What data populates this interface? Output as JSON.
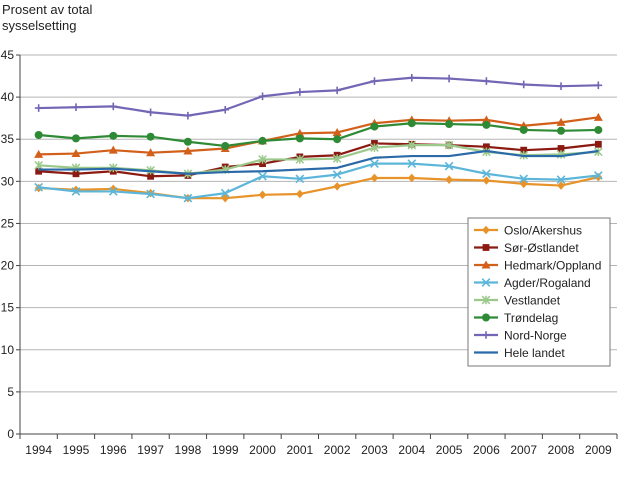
{
  "chart_data": {
    "type": "line",
    "title": "",
    "ylabel_lines": [
      "Prosent av total",
      "sysselsetting"
    ],
    "xlabel": "",
    "ylim": [
      0,
      45
    ],
    "yticks": [
      0,
      5,
      10,
      15,
      20,
      25,
      30,
      35,
      40,
      45
    ],
    "categories": [
      "1994",
      "1995",
      "1996",
      "1997",
      "1998",
      "1999",
      "2000",
      "2001",
      "2002",
      "2003",
      "2004",
      "2005",
      "2006",
      "2007",
      "2008",
      "2009"
    ],
    "grid": true,
    "legend_position": "right",
    "series": [
      {
        "name": "Oslo/Akershus",
        "color": "#e8932a",
        "marker": "diamond",
        "values": [
          29.2,
          29.0,
          29.1,
          28.6,
          28.0,
          28.0,
          28.4,
          28.5,
          29.4,
          30.4,
          30.4,
          30.2,
          30.1,
          29.7,
          29.5,
          30.5
        ]
      },
      {
        "name": "Sør-Østlandet",
        "color": "#8b1a12",
        "marker": "square",
        "values": [
          31.2,
          30.9,
          31.2,
          30.6,
          30.7,
          31.7,
          32.1,
          32.9,
          33.1,
          34.5,
          34.4,
          34.3,
          34.1,
          33.7,
          33.9,
          34.4
        ]
      },
      {
        "name": "Hedmark/Oppland",
        "color": "#d2601a",
        "marker": "triangle",
        "values": [
          33.2,
          33.3,
          33.7,
          33.4,
          33.6,
          33.9,
          34.8,
          35.7,
          35.8,
          36.9,
          37.3,
          37.2,
          37.3,
          36.6,
          37.0,
          37.6
        ]
      },
      {
        "name": "Agder/Rogaland",
        "color": "#5cb6d9",
        "marker": "x",
        "values": [
          29.3,
          28.8,
          28.8,
          28.5,
          28.0,
          28.6,
          30.6,
          30.3,
          30.8,
          32.1,
          32.1,
          31.8,
          30.9,
          30.3,
          30.2,
          30.7
        ]
      },
      {
        "name": "Vestlandet",
        "color": "#9bc98c",
        "marker": "star",
        "values": [
          31.9,
          31.6,
          31.6,
          31.3,
          30.9,
          31.4,
          32.6,
          32.6,
          32.7,
          34.0,
          34.3,
          34.3,
          33.5,
          33.1,
          33.2,
          33.5
        ]
      },
      {
        "name": "Trøndelag",
        "color": "#2f8a35",
        "marker": "circle",
        "values": [
          35.5,
          35.1,
          35.4,
          35.3,
          34.7,
          34.2,
          34.8,
          35.1,
          35.0,
          36.5,
          36.9,
          36.8,
          36.7,
          36.1,
          36.0,
          36.1
        ]
      },
      {
        "name": "Nord-Norge",
        "color": "#7266b5",
        "marker": "plus",
        "values": [
          38.7,
          38.8,
          38.9,
          38.2,
          37.8,
          38.5,
          40.1,
          40.6,
          40.8,
          41.9,
          42.3,
          42.2,
          41.9,
          41.5,
          41.3,
          41.4
        ]
      },
      {
        "name": "Hele landet",
        "color": "#2a6aa8",
        "marker": "none",
        "values": [
          31.4,
          31.4,
          31.5,
          31.2,
          30.9,
          31.1,
          31.2,
          31.4,
          31.6,
          32.8,
          33.0,
          33.0,
          33.6,
          33.0,
          33.0,
          33.6
        ]
      }
    ]
  }
}
